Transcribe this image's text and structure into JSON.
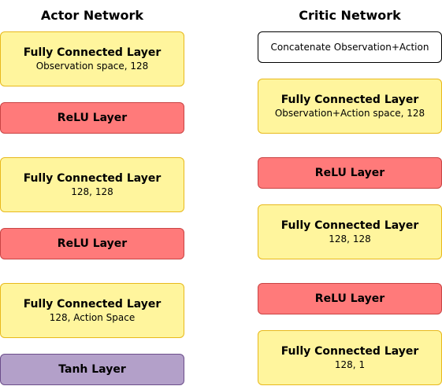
{
  "actor": {
    "title": "Actor Network",
    "layers": [
      {
        "name": "Fully Connected Layer",
        "detail": "Observation space, 128"
      },
      {
        "name": "ReLU Layer"
      },
      {
        "name": "Fully Connected Layer",
        "detail": "128, 128"
      },
      {
        "name": "ReLU Layer"
      },
      {
        "name": "Fully Connected Layer",
        "detail": "128, Action Space"
      },
      {
        "name": "Tanh Layer"
      }
    ]
  },
  "critic": {
    "title": "Critic Network",
    "concat_label": "Concatenate Observation+Action",
    "layers": [
      {
        "name": "Fully Connected Layer",
        "detail": "Observation+Action space, 128"
      },
      {
        "name": "ReLU Layer"
      },
      {
        "name": "Fully Connected Layer",
        "detail": "128, 128"
      },
      {
        "name": "ReLU Layer"
      },
      {
        "name": "Fully Connected Layer",
        "detail": "128, 1"
      }
    ]
  },
  "colors": {
    "fully_connected_fill": "#fff59d",
    "fully_connected_border": "#e8b91c",
    "relu_fill": "#ff7a7a",
    "relu_border": "#c94444",
    "tanh_fill": "#b3a0c9",
    "tanh_border": "#6b4d8a",
    "concat_fill": "#ffffff",
    "concat_border": "#000000"
  }
}
